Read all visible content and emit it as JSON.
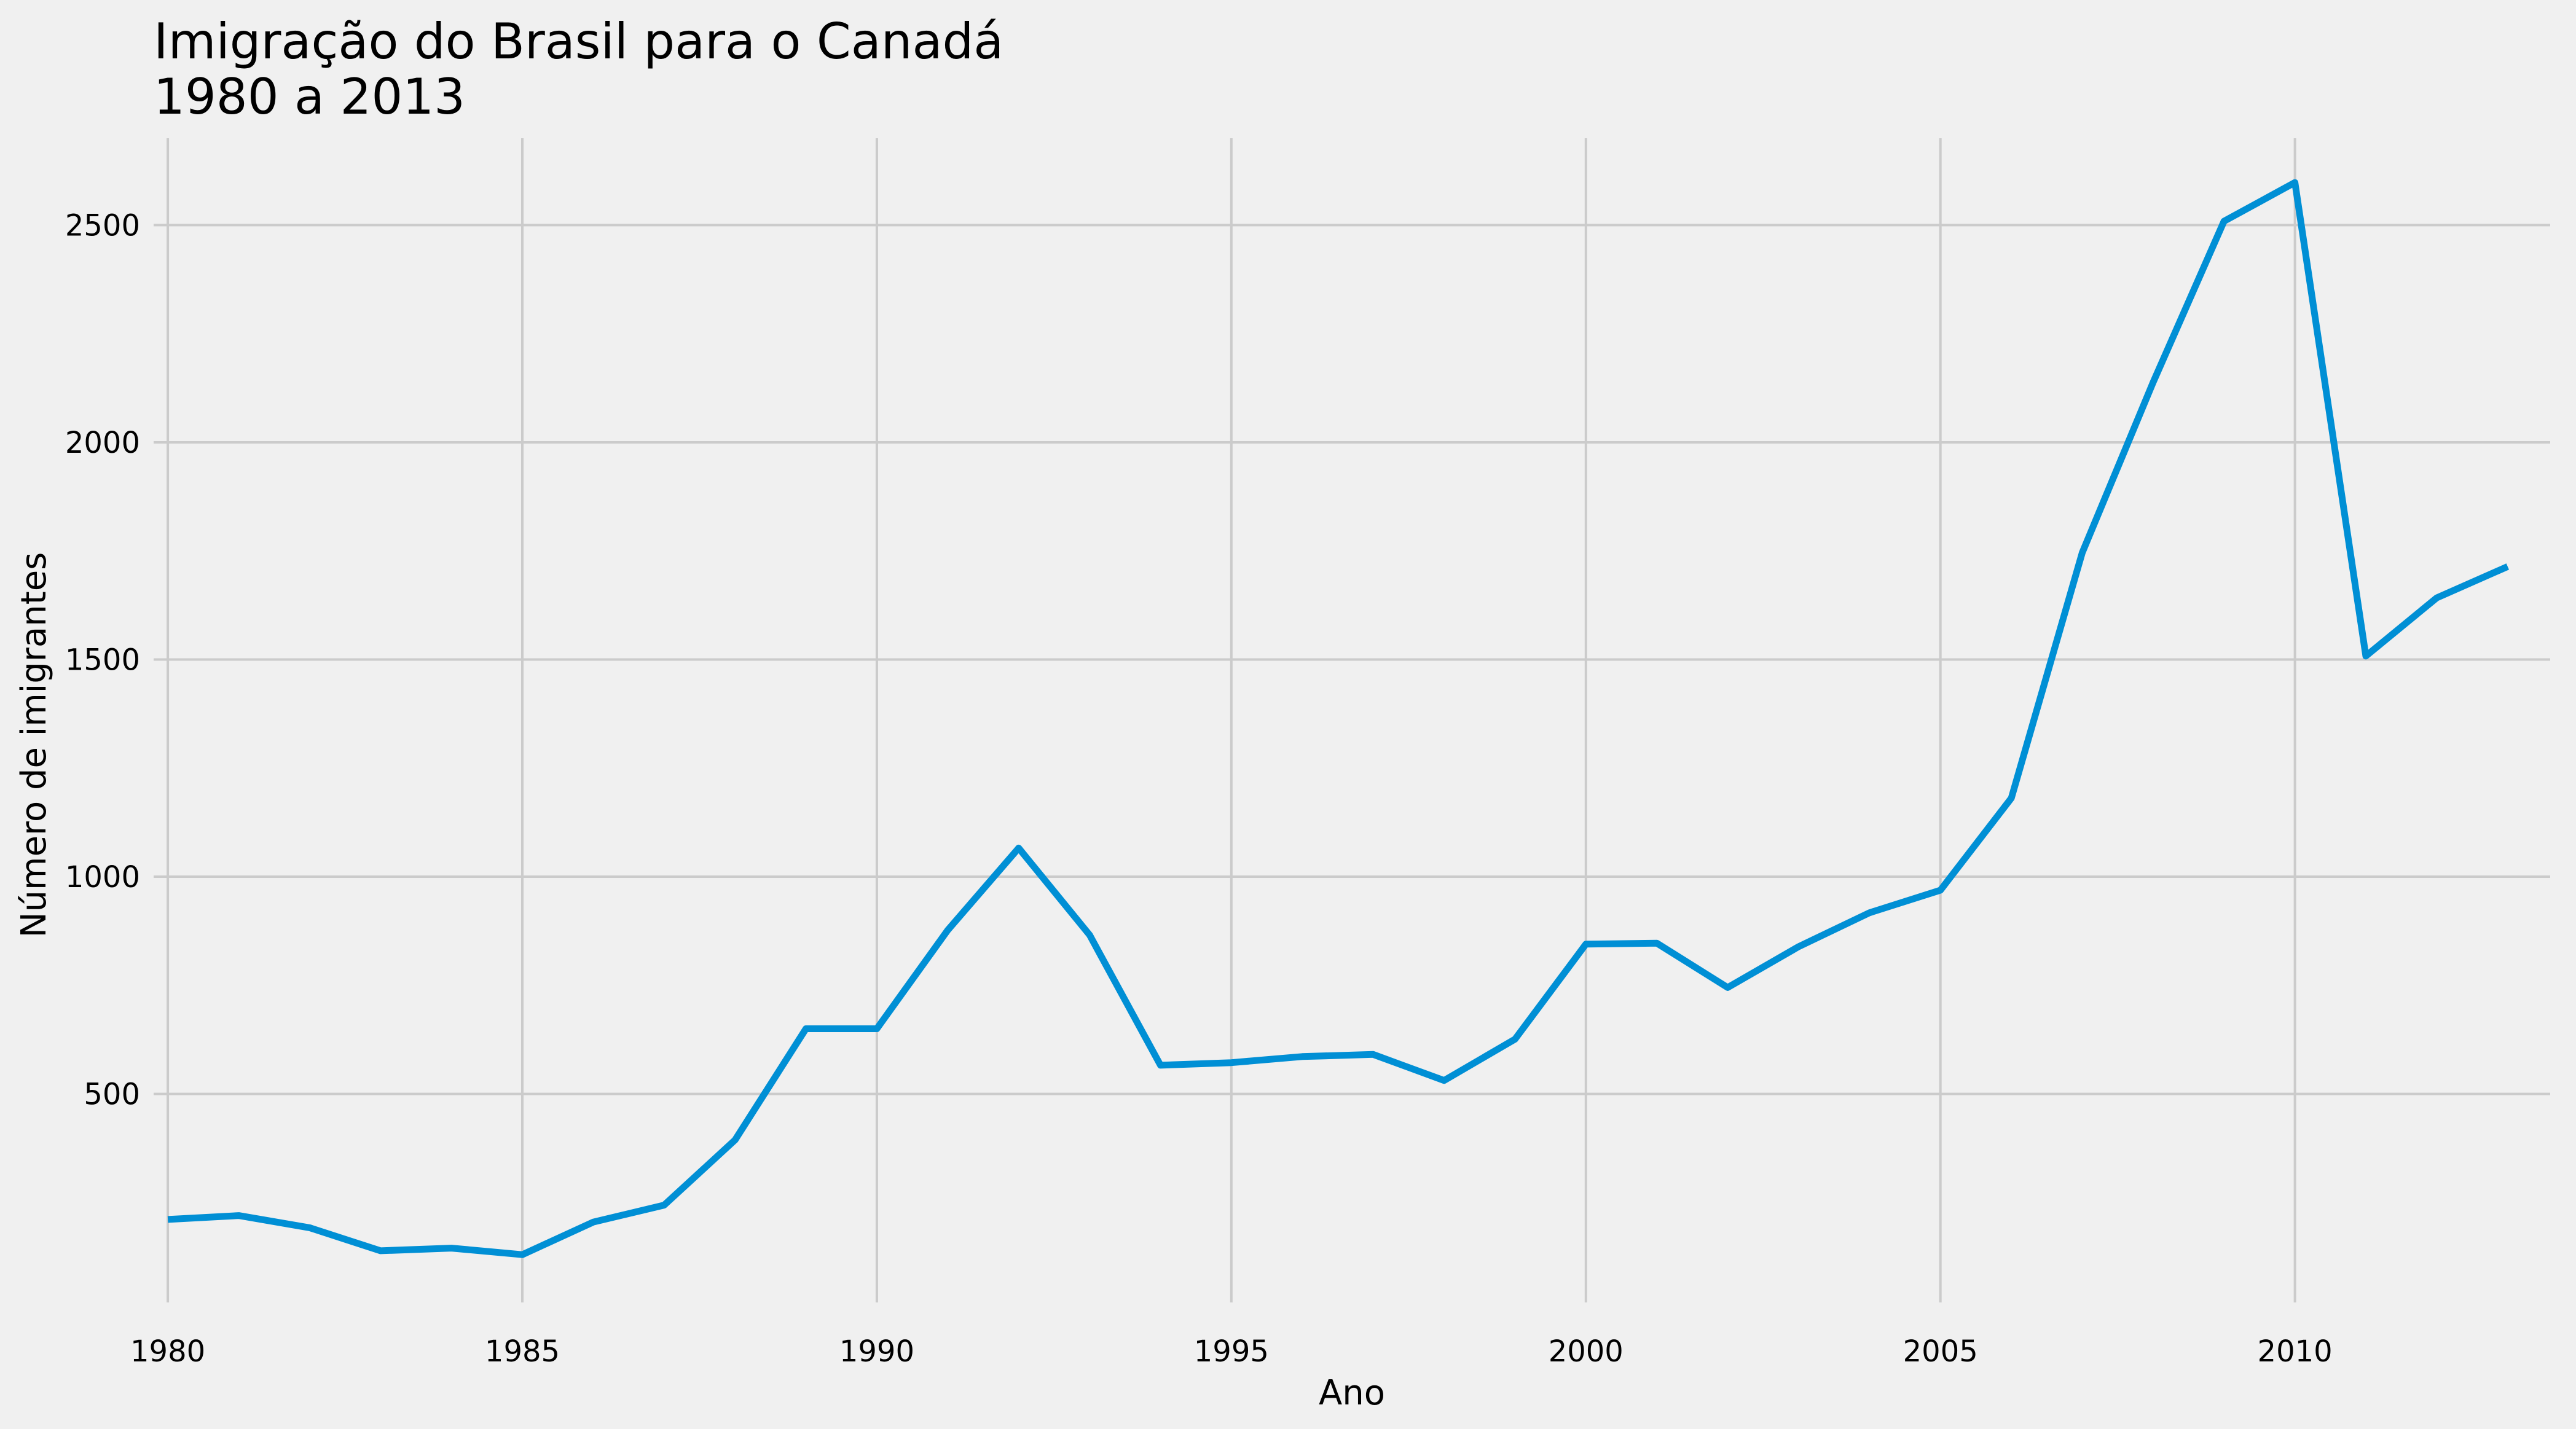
{
  "chart_data": {
    "type": "line",
    "title": "Imigração do Brasil para o Canadá",
    "subtitle": "1980 a 2013",
    "xlabel": "Ano",
    "ylabel": "Número de imigrantes",
    "x": [
      1980,
      1981,
      1982,
      1983,
      1984,
      1985,
      1986,
      1987,
      1988,
      1989,
      1990,
      1991,
      1992,
      1993,
      1994,
      1995,
      1996,
      1997,
      1998,
      1999,
      2000,
      2001,
      2002,
      2003,
      2004,
      2005,
      2006,
      2007,
      2008,
      2009,
      2010,
      2011,
      2012,
      2013
    ],
    "series": [
      {
        "values": [
          211,
          220,
          192,
          139,
          145,
          130,
          205,
          244,
          394,
          650,
          650,
          877,
          1066,
          866,
          566,
          572,
          586,
          591,
          531,
          626,
          845,
          847,
          745,
          839,
          917,
          969,
          1181,
          1746,
          2138,
          2509,
          2598,
          1508,
          1642,
          1714
        ],
        "color": "#008fd5"
      }
    ],
    "xlim": [
      1979.8,
      2013.6
    ],
    "ylim": [
      20,
      2700
    ],
    "xticks": [
      1980,
      1985,
      1990,
      1995,
      2000,
      2005,
      2010
    ],
    "yticks": [
      500,
      1000,
      1500,
      2000,
      2500
    ],
    "grid": true,
    "legend": "none"
  }
}
